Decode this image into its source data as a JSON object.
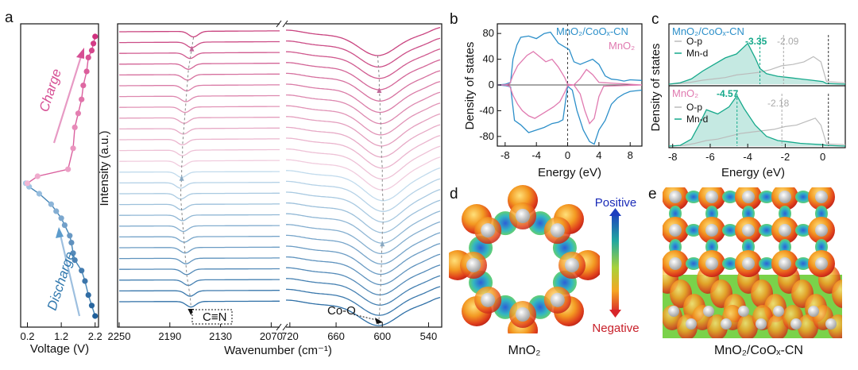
{
  "panel_labels": {
    "a": "a",
    "b": "b",
    "c": "c",
    "d": "d",
    "e": "e"
  },
  "colors": {
    "charge": "#d64f94",
    "discharge": "#2f77ad",
    "mno2": "#e07ab0",
    "coo": "#2c8fc9",
    "op": "#bbbbbb",
    "mnd": "#16a98b",
    "arrow_dis": "#9dbfdf",
    "arrow_ch": "#e79ac4"
  },
  "chart_data": [
    {
      "id": "a-voltage",
      "type": "line",
      "xlabel": "Voltage (V)",
      "xticks": [
        "0.2",
        "1.2",
        "2.2"
      ],
      "xlim": [
        0.0,
        2.3
      ],
      "ylim": [
        0,
        40
      ],
      "annotations": {
        "charge": "Charge",
        "discharge": "Discharge"
      },
      "series": [
        {
          "name": "Discharge",
          "color": "#2f77ad",
          "points": [
            [
              0.15,
              19
            ],
            [
              0.25,
              18.5
            ],
            [
              0.55,
              17.5
            ],
            [
              0.9,
              16
            ],
            [
              1.05,
              15
            ],
            [
              1.2,
              14
            ],
            [
              1.3,
              13
            ],
            [
              1.45,
              11.5
            ],
            [
              1.5,
              10.5
            ],
            [
              1.55,
              9
            ],
            [
              1.6,
              8
            ],
            [
              1.8,
              6.5
            ],
            [
              1.9,
              5
            ],
            [
              2.0,
              3
            ],
            [
              2.1,
              1.5
            ],
            [
              2.2,
              0
            ]
          ]
        },
        {
          "name": "Charge",
          "color": "#d64f94",
          "points": [
            [
              0.2,
              19
            ],
            [
              0.5,
              20
            ],
            [
              1.4,
              21
            ],
            [
              1.55,
              24
            ],
            [
              1.6,
              27
            ],
            [
              1.7,
              29
            ],
            [
              1.8,
              31
            ],
            [
              1.85,
              33
            ],
            [
              1.95,
              35
            ],
            [
              2.0,
              37
            ],
            [
              2.1,
              38
            ],
            [
              2.15,
              39
            ],
            [
              2.2,
              40
            ]
          ]
        }
      ]
    },
    {
      "id": "a-ftir",
      "type": "line",
      "xlabel": "Wavenumber (cm⁻¹)",
      "ylabel": "Intensity (a.u.)",
      "left_range": [
        2250,
        2060
      ],
      "right_range": [
        725,
        525
      ],
      "left_ticks": [
        "2250",
        "2190",
        "2130",
        "2070"
      ],
      "right_ticks": [
        "720",
        "660",
        "600",
        "540"
      ],
      "annotations": {
        "cn": "C≡N",
        "coo": "Co-O"
      },
      "n_curves": 26,
      "cn_peak_positions": [
        2162,
        2164,
        2166,
        2168,
        2169,
        2170,
        2171,
        2172,
        2173,
        2174,
        2175,
        2175,
        2176,
        2176,
        2177,
        2177,
        2176,
        2175,
        2174,
        2173,
        2172,
        2171,
        2170,
        2168,
        2166,
        2165
      ],
      "coo_peak_positions": [
        606,
        605,
        604,
        604,
        603,
        603,
        602,
        602,
        601,
        601,
        600,
        600,
        600,
        599,
        599,
        599,
        600,
        600,
        601,
        601,
        602,
        602,
        603,
        603,
        604,
        605
      ]
    },
    {
      "id": "b-dos",
      "type": "line",
      "xlabel": "Energy (eV)",
      "ylabel": "Density of states",
      "xlim": [
        -9,
        9.5
      ],
      "ylim": [
        -95,
        95
      ],
      "xticks": [
        "-8",
        "-4",
        "0",
        "4",
        "8"
      ],
      "yticks": [
        "80",
        "40",
        "0",
        "-40",
        "-80"
      ],
      "legend": [
        "MnO₂/CoOₓ-CN",
        "MnO₂"
      ],
      "series": [
        {
          "name": "MnO2/CoOx-CN",
          "color": "#2c8fc9",
          "up": [
            [
              -9,
              0
            ],
            [
              -8,
              1
            ],
            [
              -7.3,
              4
            ],
            [
              -7,
              40
            ],
            [
              -6.5,
              62
            ],
            [
              -6,
              74
            ],
            [
              -5,
              76
            ],
            [
              -4,
              72
            ],
            [
              -3,
              80
            ],
            [
              -2.2,
              82
            ],
            [
              -1.2,
              65
            ],
            [
              -0.5,
              60
            ],
            [
              0.2,
              55
            ],
            [
              0.8,
              36
            ],
            [
              1.6,
              32
            ],
            [
              2.4,
              36
            ],
            [
              3.2,
              40
            ],
            [
              4,
              32
            ],
            [
              4.8,
              14
            ],
            [
              5.6,
              9
            ],
            [
              6.4,
              8
            ],
            [
              7.2,
              6
            ],
            [
              8,
              8
            ],
            [
              9.5,
              7
            ]
          ],
          "down": [
            [
              -9,
              0
            ],
            [
              -8,
              -1
            ],
            [
              -7.3,
              -3
            ],
            [
              -6.8,
              -55
            ],
            [
              -6,
              -62
            ],
            [
              -5,
              -74
            ],
            [
              -4,
              -70
            ],
            [
              -3,
              -66
            ],
            [
              -2,
              -60
            ],
            [
              -1.2,
              -58
            ],
            [
              -0.6,
              -54
            ],
            [
              0,
              -2
            ],
            [
              0.6,
              -8
            ],
            [
              1.2,
              -40
            ],
            [
              2,
              -70
            ],
            [
              2.8,
              -88
            ],
            [
              3.4,
              -92
            ],
            [
              4,
              -70
            ],
            [
              4.8,
              -55
            ],
            [
              5.6,
              -30
            ],
            [
              6.4,
              -20
            ],
            [
              7.2,
              -14
            ],
            [
              8,
              -10
            ],
            [
              9.5,
              -8
            ]
          ]
        },
        {
          "name": "MnO2",
          "color": "#e07ab0",
          "up": [
            [
              -9,
              0
            ],
            [
              -8,
              0
            ],
            [
              -7.4,
              2
            ],
            [
              -7,
              15
            ],
            [
              -6.4,
              30
            ],
            [
              -5.8,
              38
            ],
            [
              -5.2,
              46
            ],
            [
              -4.4,
              52
            ],
            [
              -3.6,
              44
            ],
            [
              -2.8,
              36
            ],
            [
              -2,
              40
            ],
            [
              -1.2,
              28
            ],
            [
              -0.4,
              12
            ],
            [
              0,
              1
            ],
            [
              0.8,
              0
            ],
            [
              1.6,
              10
            ],
            [
              2.4,
              24
            ],
            [
              3.2,
              16
            ],
            [
              4,
              4
            ],
            [
              9.5,
              0
            ]
          ],
          "down": [
            [
              -9,
              0
            ],
            [
              -8,
              0
            ],
            [
              -7.4,
              -2
            ],
            [
              -7,
              -16
            ],
            [
              -6.4,
              -30
            ],
            [
              -5.8,
              -40
            ],
            [
              -5,
              -48
            ],
            [
              -4.2,
              -52
            ],
            [
              -3.4,
              -46
            ],
            [
              -2.6,
              -40
            ],
            [
              -1.8,
              -34
            ],
            [
              -1,
              -26
            ],
            [
              -0.4,
              -12
            ],
            [
              0,
              -1
            ],
            [
              0.8,
              0
            ],
            [
              1.6,
              -14
            ],
            [
              2.2,
              -40
            ],
            [
              2.8,
              -60
            ],
            [
              3.4,
              -52
            ],
            [
              4,
              -18
            ],
            [
              4.6,
              -2
            ],
            [
              9.5,
              0
            ]
          ]
        }
      ]
    },
    {
      "id": "c-pdos",
      "type": "line",
      "xlabel": "Energy (eV)",
      "ylabel": "Density of states",
      "xlim": [
        -8.2,
        1.2
      ],
      "xticks": [
        "-8",
        "-6",
        "-4",
        "-2",
        "0"
      ],
      "top": {
        "title": "MnO₂/CoOₓ-CN",
        "legend": [
          "O-p",
          "Mn-d"
        ],
        "labels": [
          "-3.35",
          "-2.09"
        ],
        "marks": [
          -3.35,
          -2.09
        ],
        "op": [
          [
            -8.2,
            0
          ],
          [
            -7.6,
            1
          ],
          [
            -7.0,
            3
          ],
          [
            -6.4,
            6
          ],
          [
            -5.8,
            8
          ],
          [
            -5.2,
            10
          ],
          [
            -4.6,
            14
          ],
          [
            -4.0,
            16
          ],
          [
            -3.4,
            18
          ],
          [
            -2.8,
            22
          ],
          [
            -2.2,
            28
          ],
          [
            -1.6,
            30
          ],
          [
            -1.0,
            34
          ],
          [
            -0.5,
            42
          ],
          [
            -0.1,
            34
          ],
          [
            0.2,
            4
          ],
          [
            1.2,
            2
          ]
        ],
        "mnd": [
          [
            -8.2,
            0
          ],
          [
            -7.6,
            2
          ],
          [
            -7.0,
            8
          ],
          [
            -6.4,
            20
          ],
          [
            -5.8,
            30
          ],
          [
            -5.2,
            40
          ],
          [
            -4.6,
            46
          ],
          [
            -4.0,
            62
          ],
          [
            -3.6,
            40
          ],
          [
            -3.35,
            24
          ],
          [
            -3.0,
            16
          ],
          [
            -2.4,
            12
          ],
          [
            -1.8,
            10
          ],
          [
            -1.2,
            8
          ],
          [
            -0.6,
            6
          ],
          [
            0,
            4
          ],
          [
            0.2,
            1
          ],
          [
            1.2,
            0
          ]
        ]
      },
      "bottom": {
        "title": "MnO₂",
        "legend": [
          "O-p",
          "Mn-d"
        ],
        "labels": [
          "-4.57",
          "-2.18"
        ],
        "marks": [
          -4.57,
          -2.18
        ],
        "op": [
          [
            -8.2,
            0
          ],
          [
            -7.4,
            1
          ],
          [
            -6.8,
            4
          ],
          [
            -6.2,
            8
          ],
          [
            -5.6,
            10
          ],
          [
            -5.0,
            14
          ],
          [
            -4.4,
            18
          ],
          [
            -3.8,
            20
          ],
          [
            -3.2,
            22
          ],
          [
            -2.6,
            24
          ],
          [
            -2.0,
            28
          ],
          [
            -1.4,
            30
          ],
          [
            -0.8,
            36
          ],
          [
            -0.4,
            40
          ],
          [
            -0.1,
            30
          ],
          [
            0.2,
            3
          ],
          [
            1.2,
            2
          ]
        ],
        "mnd": [
          [
            -8.2,
            0
          ],
          [
            -7.6,
            1
          ],
          [
            -7.0,
            10
          ],
          [
            -6.6,
            30
          ],
          [
            -6.2,
            52
          ],
          [
            -5.6,
            46
          ],
          [
            -5.0,
            56
          ],
          [
            -4.57,
            72
          ],
          [
            -4.2,
            54
          ],
          [
            -3.6,
            30
          ],
          [
            -3.0,
            14
          ],
          [
            -2.4,
            8
          ],
          [
            -1.8,
            6
          ],
          [
            -1.2,
            4
          ],
          [
            -0.6,
            3
          ],
          [
            0,
            2
          ],
          [
            0.2,
            1
          ],
          [
            1.2,
            0
          ]
        ]
      }
    }
  ],
  "panel_d": {
    "caption": "MnO₂",
    "positive": "Positive",
    "negative": "Negative"
  },
  "panel_e": {
    "caption": "MnO₂/CoOₓ-CN"
  }
}
